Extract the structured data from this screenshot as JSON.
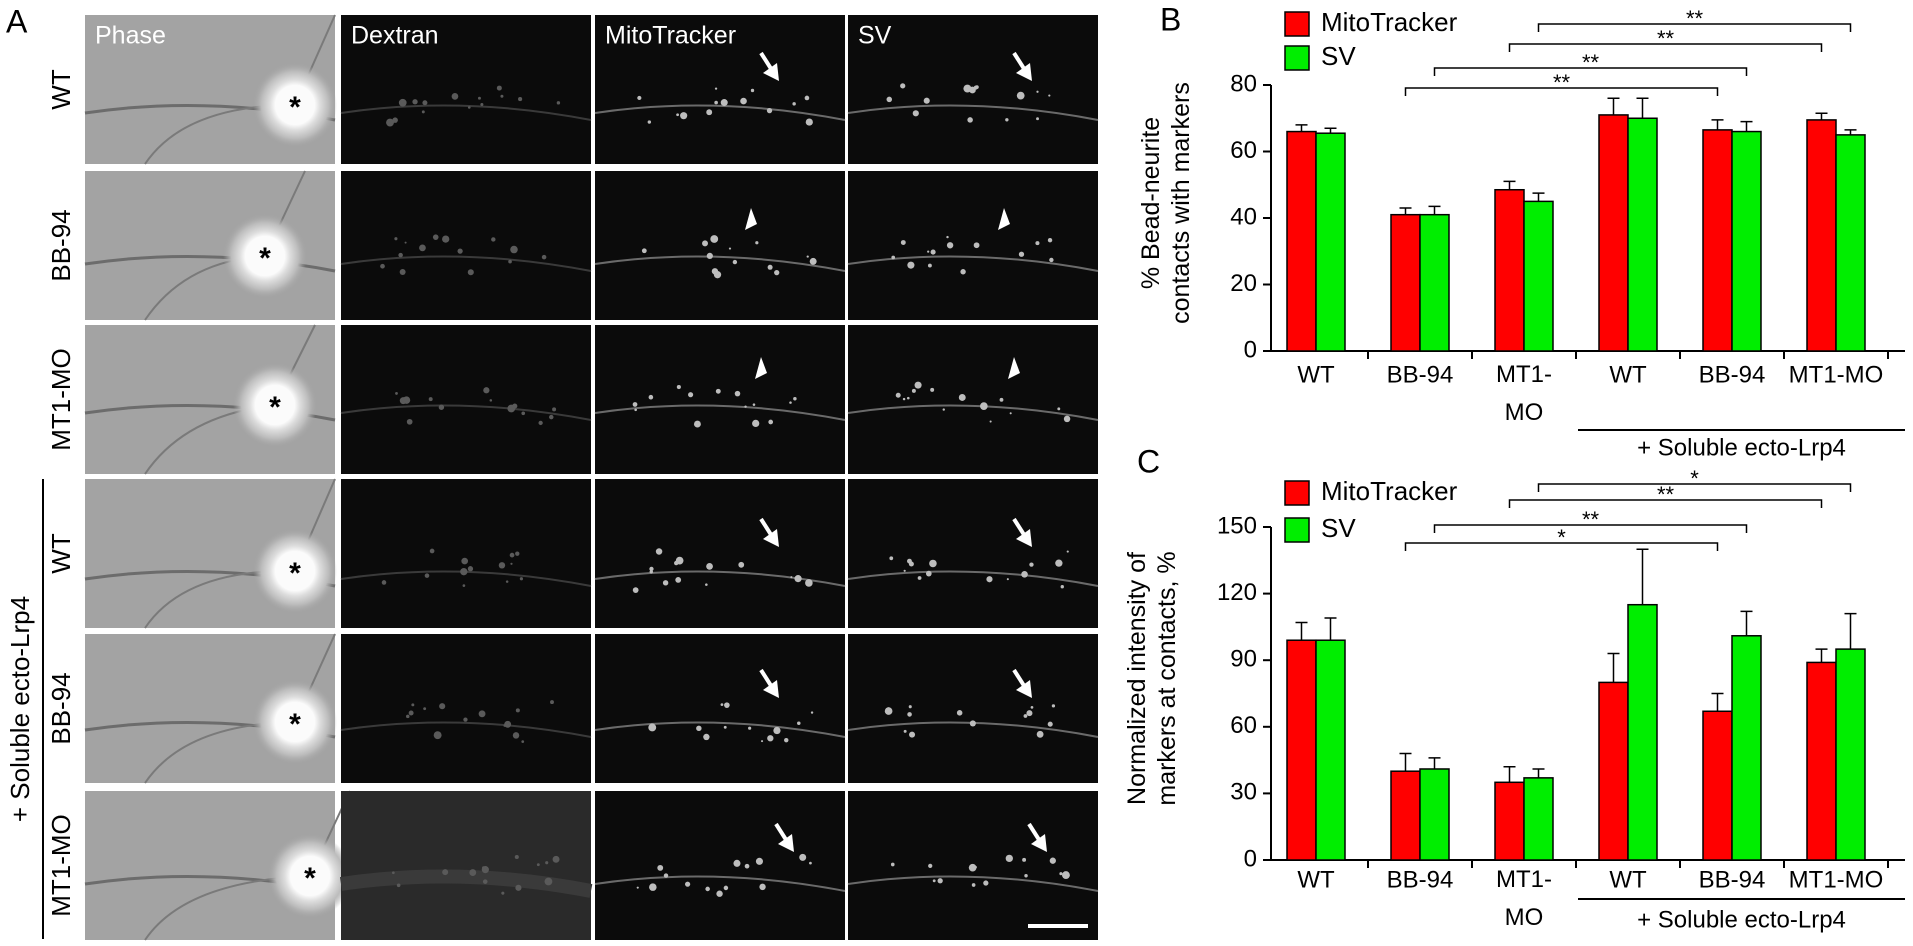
{
  "panel_a": {
    "label": "A",
    "columns": [
      "Phase",
      "Dextran",
      "MitoTracker",
      "SV"
    ],
    "rows": [
      "WT",
      "BB-94",
      "MT1-MO",
      "WT",
      "BB-94",
      "MT1-MO"
    ],
    "group_label": "+ Soluble ecto-Lrp4",
    "bead_marker": "*"
  },
  "chart_data": [
    {
      "type": "bar",
      "label": "B",
      "ylabel": "% Bead-neurite\ncontacts with markers",
      "categories": [
        "WT",
        "BB-94",
        "MT1-\nMO",
        "WT",
        "BB-94",
        "MT1-MO"
      ],
      "group_label": "+ Soluble ecto-Lrp4",
      "series": [
        {
          "name": "MitoTracker",
          "color": "#ff0000",
          "values": [
            66,
            41,
            48.5,
            71,
            66.5,
            69.5
          ],
          "errors": [
            2,
            2,
            2.5,
            5,
            3,
            2
          ]
        },
        {
          "name": "SV",
          "color": "#00ee00",
          "values": [
            65.5,
            41,
            45,
            70,
            66,
            65
          ],
          "errors": [
            1.5,
            2.5,
            2.5,
            6,
            3,
            1.5
          ]
        }
      ],
      "ylim": [
        0,
        80
      ],
      "yticks": [
        0,
        20,
        40,
        60,
        80
      ],
      "significance": [
        "**",
        "**",
        "**",
        "**"
      ]
    },
    {
      "type": "bar",
      "label": "C",
      "ylabel": "Normalized intensity of\nmarkers at contacts, %",
      "categories": [
        "WT",
        "BB-94",
        "MT1-\nMO",
        "WT",
        "BB-94",
        "MT1-MO"
      ],
      "group_label": "+ Soluble ecto-Lrp4",
      "series": [
        {
          "name": "MitoTracker",
          "color": "#ff0000",
          "values": [
            99,
            40,
            35,
            80,
            67,
            89
          ],
          "errors": [
            8,
            8,
            7,
            13,
            8,
            6
          ]
        },
        {
          "name": "SV",
          "color": "#00ee00",
          "values": [
            99,
            41,
            37,
            115,
            101,
            95
          ],
          "errors": [
            10,
            5,
            4,
            25,
            11,
            16
          ]
        }
      ],
      "ylim": [
        0,
        150
      ],
      "yticks": [
        0,
        30,
        60,
        90,
        120,
        150
      ],
      "significance": [
        "*",
        "**",
        "**",
        "*"
      ]
    }
  ]
}
